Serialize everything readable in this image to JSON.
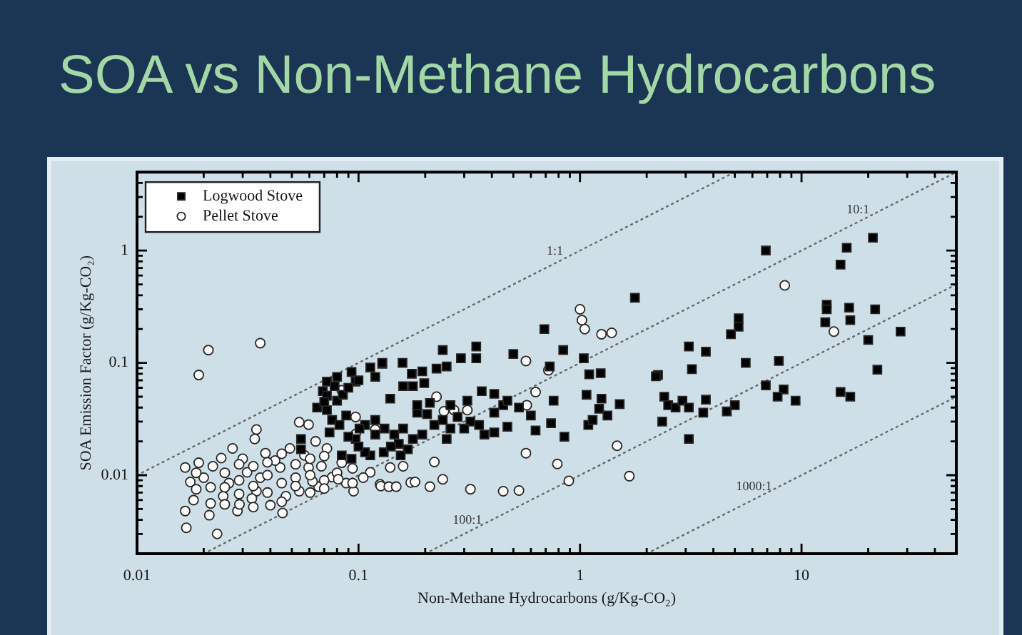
{
  "chart_data": {
    "type": "scatter",
    "title": "SOA vs Non-Methane Hydrocarbons",
    "xlabel": "Non-Methane Hydrocarbons (g/Kg-CO₂)",
    "ylabel": "SOA Emission Factor (g/Kg-CO₂)",
    "log": "xy",
    "grid": false,
    "legend": "top left",
    "xlim": [
      0.01,
      50
    ],
    "ylim": [
      0.002,
      5
    ],
    "xticks": [
      0.01,
      {
        "value": 0.02,
        "label": null
      },
      {
        "value": 0.03,
        "label": null
      },
      {
        "value": 0.04,
        "label": null
      },
      {
        "value": 0.05,
        "label": null
      },
      {
        "value": 0.06,
        "label": null
      },
      {
        "value": 0.07,
        "label": null
      },
      {
        "value": 0.08,
        "label": null
      },
      {
        "value": 0.09,
        "label": null
      },
      0.1,
      {
        "value": 0.2,
        "label": null
      },
      {
        "value": 0.3,
        "label": null
      },
      {
        "value": 0.4,
        "label": null
      },
      {
        "value": 0.5,
        "label": null
      },
      {
        "value": 0.6,
        "label": null
      },
      {
        "value": 0.7,
        "label": null
      },
      {
        "value": 0.8,
        "label": null
      },
      {
        "value": 0.9,
        "label": null
      },
      1,
      {
        "value": 2,
        "label": null
      },
      {
        "value": 3,
        "label": null
      },
      {
        "value": 4,
        "label": null
      },
      {
        "value": 5,
        "label": null
      },
      {
        "value": 6,
        "label": null
      },
      {
        "value": 7,
        "label": null
      },
      {
        "value": 8,
        "label": null
      },
      {
        "value": 9,
        "label": null
      },
      10,
      {
        "value": 20,
        "label": null
      },
      {
        "value": 30,
        "label": null
      },
      {
        "value": 40,
        "label": null
      }
    ],
    "yticks": [
      {
        "value": 0.003,
        "label": null
      },
      {
        "value": 0.004,
        "label": null
      },
      {
        "value": 0.005,
        "label": null
      },
      {
        "value": 0.006,
        "label": null
      },
      {
        "value": 0.007,
        "label": null
      },
      {
        "value": 0.008,
        "label": null
      },
      {
        "value": 0.009,
        "label": null
      },
      0.01,
      {
        "value": 0.02,
        "label": null
      },
      {
        "value": 0.03,
        "label": null
      },
      {
        "value": 0.04,
        "label": null
      },
      {
        "value": 0.05,
        "label": null
      },
      {
        "value": 0.06,
        "label": null
      },
      {
        "value": 0.07,
        "label": null
      },
      {
        "value": 0.08,
        "label": null
      },
      {
        "value": 0.09,
        "label": null
      },
      0.1,
      {
        "value": 0.2,
        "label": null
      },
      {
        "value": 0.3,
        "label": null
      },
      {
        "value": 0.4,
        "label": null
      },
      {
        "value": 0.5,
        "label": null
      },
      {
        "value": 0.6,
        "label": null
      },
      {
        "value": 0.7,
        "label": null
      },
      {
        "value": 0.8,
        "label": null
      },
      {
        "value": 0.9,
        "label": null
      },
      1,
      {
        "value": 2,
        "label": null
      },
      {
        "value": 3,
        "label": null
      },
      {
        "value": 4,
        "label": null
      }
    ],
    "annotations": [
      {
        "text": "1:1",
        "x": 0.77,
        "y": 0.77
      },
      {
        "text": "10:1",
        "x": 18,
        "y": 1.8
      },
      {
        "text": "100:1",
        "x": 0.31,
        "y": 0.0031
      },
      {
        "text": "1000:1",
        "x": 6.1,
        "y": 0.0061
      }
    ],
    "series": [
      {
        "name": "Logwood Stove",
        "marker": "square",
        "color": "#000000",
        "x": [
          1.77,
          0.69,
          0.84,
          1.04,
          0.5,
          0.34,
          0.34,
          0.29,
          0.24,
          0.25,
          0.225,
          0.158,
          0.128,
          0.174,
          0.194,
          0.198,
          0.176,
          0.159,
          0.139,
          0.73,
          1.1,
          1.24,
          2.25,
          1.07,
          1.25,
          1.22,
          1.09,
          1.14,
          1.33,
          1.51,
          0.76,
          0.74,
          0.85,
          0.63,
          0.47,
          0.45,
          0.53,
          0.6,
          0.41,
          0.36,
          0.41,
          0.47,
          0.35,
          0.32,
          0.3,
          0.37,
          0.41,
          0.26,
          0.25,
          0.22,
          0.204,
          0.184,
          0.194,
          0.176,
          0.159,
          0.152,
          0.167,
          0.155,
          0.145,
          0.131,
          0.119,
          0.107,
          0.101,
          0.113,
          0.107,
          0.31,
          0.26,
          0.24,
          0.28,
          0.21,
          0.184,
          0.072,
          0.069,
          0.072,
          0.076,
          0.08,
          0.088,
          0.074,
          0.055,
          0.055,
          0.084,
          0.093,
          0.119,
          0.097,
          0.08,
          0.093,
          0.113,
          0.128,
          0.072,
          0.097,
          0.119,
          0.078,
          0.085,
          0.09,
          0.1,
          0.082,
          0.09,
          0.1,
          0.13,
          0.14,
          0.065,
          0.07,
          6.9,
          21,
          16,
          15,
          13,
          13,
          12.8,
          16.4,
          16.6,
          21.5,
          28,
          20,
          22,
          15,
          16.6,
          5.2,
          5.2,
          4.8,
          3.1,
          3.7,
          3.2,
          5.6,
          7.9,
          6.9,
          8.3,
          7.8,
          9.4,
          5.0,
          4.6,
          3.7,
          3.6,
          2.4,
          2.5,
          2.7,
          2.9,
          3.1,
          2.2,
          2.35,
          3.1
        ],
        "values": [
          0.38,
          0.2,
          0.13,
          0.11,
          0.12,
          0.14,
          0.11,
          0.11,
          0.13,
          0.093,
          0.089,
          0.1,
          0.098,
          0.08,
          0.084,
          0.066,
          0.062,
          0.062,
          0.048,
          0.093,
          0.079,
          0.081,
          0.078,
          0.052,
          0.048,
          0.039,
          0.028,
          0.031,
          0.034,
          0.043,
          0.046,
          0.029,
          0.022,
          0.025,
          0.027,
          0.042,
          0.04,
          0.034,
          0.036,
          0.056,
          0.053,
          0.046,
          0.028,
          0.03,
          0.026,
          0.023,
          0.024,
          0.026,
          0.021,
          0.028,
          0.035,
          0.036,
          0.023,
          0.021,
          0.026,
          0.019,
          0.017,
          0.015,
          0.023,
          0.026,
          0.031,
          0.028,
          0.026,
          0.015,
          0.016,
          0.046,
          0.042,
          0.031,
          0.033,
          0.044,
          0.042,
          0.038,
          0.056,
          0.068,
          0.031,
          0.046,
          0.034,
          0.024,
          0.021,
          0.017,
          0.015,
          0.014,
          0.023,
          0.021,
          0.075,
          0.083,
          0.091,
          0.1,
          0.051,
          0.068,
          0.075,
          0.062,
          0.052,
          0.06,
          0.07,
          0.028,
          0.022,
          0.018,
          0.016,
          0.018,
          0.04,
          0.045,
          1.0,
          1.3,
          1.06,
          0.75,
          0.33,
          0.3,
          0.23,
          0.31,
          0.24,
          0.3,
          0.19,
          0.16,
          0.087,
          0.055,
          0.05,
          0.25,
          0.21,
          0.18,
          0.14,
          0.126,
          0.088,
          0.1,
          0.104,
          0.063,
          0.058,
          0.05,
          0.046,
          0.042,
          0.037,
          0.047,
          0.036,
          0.05,
          0.042,
          0.04,
          0.046,
          0.04,
          0.076,
          0.03,
          0.021
        ]
      },
      {
        "name": "Pellet Stove",
        "marker": "circle",
        "color": "#ffffff",
        "x": [
          0.019,
          0.021,
          0.036,
          0.0167,
          0.023,
          0.0165,
          0.0165,
          0.0174,
          0.019,
          0.0212,
          0.024,
          0.0245,
          0.027,
          0.0284,
          0.0314,
          0.0346,
          0.0346,
          0.038,
          0.04,
          0.0443,
          0.0454,
          0.049,
          0.054,
          0.054,
          0.0595,
          0.0595,
          0.064,
          0.066,
          0.072,
          0.076,
          0.084,
          0.095,
          0.097,
          0.113,
          0.125,
          0.018,
          0.02,
          0.022,
          0.026,
          0.03,
          0.033,
          0.036,
          0.042,
          0.047,
          0.052,
          0.057,
          0.062,
          0.068,
          0.08,
          0.088,
          0.105,
          0.034,
          0.029,
          0.084,
          0.097,
          1.0,
          1.02,
          1.05,
          1.25,
          1.39,
          0.57,
          0.72,
          0.63,
          0.225,
          0.243,
          0.31,
          0.57,
          0.79,
          0.89,
          1.47,
          1.67,
          0.22,
          0.24,
          0.21,
          0.32,
          0.45,
          0.53,
          0.126,
          0.137,
          0.148,
          0.172,
          0.18,
          0.139,
          0.159,
          0.119,
          0.575,
          0.27,
          8.4,
          14,
          0.0185,
          0.0185,
          0.0215,
          0.0215,
          0.0249,
          0.0249,
          0.0249,
          0.0289,
          0.0289,
          0.0289,
          0.0335,
          0.0335,
          0.0335,
          0.0388,
          0.0388,
          0.0388,
          0.045,
          0.045,
          0.045,
          0.052,
          0.052,
          0.0605,
          0.0605,
          0.0605,
          0.07,
          0.07,
          0.07,
          0.081,
          0.094,
          0.094
        ],
        "values": [
          0.078,
          0.13,
          0.15,
          0.0034,
          0.003,
          0.0117,
          0.0048,
          0.0087,
          0.0129,
          0.0044,
          0.0142,
          0.0065,
          0.0173,
          0.0048,
          0.0106,
          0.0255,
          0.0072,
          0.0157,
          0.0054,
          0.0117,
          0.0046,
          0.0173,
          0.0296,
          0.0072,
          0.0282,
          0.0117,
          0.02,
          0.0079,
          0.0173,
          0.0096,
          0.0129,
          0.0072,
          0.0232,
          0.0106,
          0.0083,
          0.006,
          0.0095,
          0.012,
          0.0085,
          0.014,
          0.0062,
          0.0095,
          0.0135,
          0.0065,
          0.0095,
          0.015,
          0.0088,
          0.012,
          0.0105,
          0.0085,
          0.0095,
          0.021,
          0.0055,
          0.057,
          0.033,
          0.3,
          0.24,
          0.2,
          0.18,
          0.185,
          0.104,
          0.086,
          0.055,
          0.05,
          0.037,
          0.038,
          0.0157,
          0.0126,
          0.0089,
          0.0183,
          0.0098,
          0.0131,
          0.0092,
          0.0079,
          0.0075,
          0.0072,
          0.0073,
          0.008,
          0.0079,
          0.0079,
          0.0086,
          0.0087,
          0.0117,
          0.012,
          0.0255,
          0.042,
          0.038,
          0.49,
          0.19,
          0.0075,
          0.0105,
          0.0078,
          0.0056,
          0.0105,
          0.0078,
          0.0055,
          0.0125,
          0.009,
          0.0068,
          0.012,
          0.008,
          0.0052,
          0.013,
          0.01,
          0.007,
          0.0155,
          0.0085,
          0.0058,
          0.0125,
          0.008,
          0.014,
          0.01,
          0.007,
          0.0148,
          0.009,
          0.0076,
          0.0092,
          0.0115,
          0.0085
        ]
      },
      {
        "type": "line",
        "marker": "none",
        "line_style": "dotted",
        "color": "#666666",
        "x": [
          0.01,
          5
        ],
        "values": [
          0.01,
          5
        ]
      },
      {
        "type": "line",
        "marker": "none",
        "line_style": "dotted",
        "color": "#666666",
        "x": [
          0.02,
          50
        ],
        "values": [
          0.002,
          5
        ]
      },
      {
        "type": "line",
        "marker": "none",
        "line_style": "dotted",
        "color": "#666666",
        "x": [
          0.2,
          50
        ],
        "values": [
          0.002,
          0.5
        ]
      },
      {
        "type": "line",
        "marker": "none",
        "line_style": "dotted",
        "color": "#666666",
        "x": [
          2,
          50
        ],
        "values": [
          0.002,
          0.05
        ]
      }
    ]
  }
}
